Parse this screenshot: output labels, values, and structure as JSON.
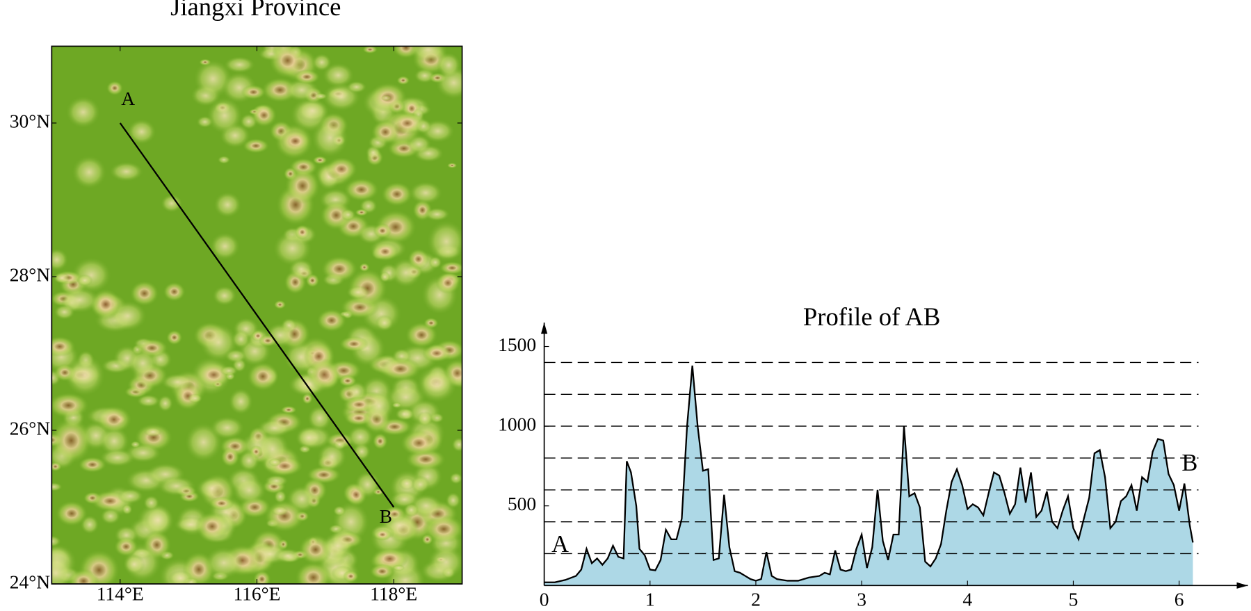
{
  "chart_data": [
    {
      "type": "map",
      "title": "Jiangxi Province",
      "xlim": [
        113,
        119
      ],
      "ylim": [
        24,
        31
      ],
      "xticks": [
        {
          "value": 114,
          "label": "114°E"
        },
        {
          "value": 116,
          "label": "116°E"
        },
        {
          "value": 118,
          "label": "118°E"
        }
      ],
      "yticks": [
        {
          "value": 24,
          "label": "24°N"
        },
        {
          "value": 26,
          "label": "26°N"
        },
        {
          "value": 28,
          "label": "28°N"
        },
        {
          "value": 30,
          "label": "30°N"
        }
      ],
      "points": [
        {
          "label": "A",
          "x": 114,
          "y": 30
        },
        {
          "label": "B",
          "x": 118,
          "y": 25
        }
      ]
    },
    {
      "type": "area",
      "title": "Profile of AB",
      "color": "#add8e6",
      "xlim": [
        0,
        6.65
      ],
      "ylim": [
        0,
        1650
      ],
      "xticks": [
        0,
        1,
        2,
        3,
        4,
        5,
        6
      ],
      "yticks": [
        500,
        1000,
        1500
      ],
      "dashed_levels": [
        200,
        400,
        600,
        800,
        1000,
        1200,
        1400
      ],
      "start_label": "A",
      "end_label": "B",
      "x": [
        0,
        0.1,
        0.2,
        0.3,
        0.35,
        0.4,
        0.45,
        0.5,
        0.55,
        0.6,
        0.65,
        0.7,
        0.75,
        0.78,
        0.82,
        0.87,
        0.9,
        0.95,
        1.0,
        1.05,
        1.1,
        1.15,
        1.2,
        1.25,
        1.3,
        1.35,
        1.4,
        1.45,
        1.5,
        1.55,
        1.6,
        1.65,
        1.7,
        1.75,
        1.8,
        1.85,
        1.9,
        1.95,
        2.0,
        2.05,
        2.1,
        2.15,
        2.2,
        2.3,
        2.4,
        2.5,
        2.6,
        2.65,
        2.7,
        2.75,
        2.8,
        2.85,
        2.9,
        2.95,
        3.0,
        3.05,
        3.1,
        3.15,
        3.2,
        3.25,
        3.3,
        3.35,
        3.4,
        3.45,
        3.5,
        3.55,
        3.6,
        3.65,
        3.7,
        3.75,
        3.8,
        3.85,
        3.9,
        3.95,
        4.0,
        4.05,
        4.1,
        4.15,
        4.2,
        4.25,
        4.3,
        4.35,
        4.4,
        4.45,
        4.5,
        4.55,
        4.6,
        4.65,
        4.7,
        4.75,
        4.8,
        4.85,
        4.9,
        4.95,
        5.0,
        5.05,
        5.1,
        5.15,
        5.2,
        5.25,
        5.3,
        5.35,
        5.4,
        5.45,
        5.5,
        5.55,
        5.6,
        5.65,
        5.7,
        5.75,
        5.8,
        5.85,
        5.9,
        5.95,
        6.0,
        6.05,
        6.1,
        6.13
      ],
      "values": [
        20,
        20,
        35,
        60,
        100,
        230,
        140,
        170,
        130,
        170,
        250,
        180,
        170,
        780,
        710,
        500,
        230,
        190,
        100,
        95,
        160,
        350,
        290,
        290,
        420,
        1000,
        1380,
        1000,
        720,
        730,
        160,
        170,
        570,
        240,
        90,
        80,
        60,
        40,
        30,
        40,
        210,
        60,
        40,
        30,
        30,
        50,
        60,
        80,
        70,
        220,
        100,
        90,
        100,
        230,
        320,
        110,
        240,
        600,
        280,
        160,
        320,
        320,
        1000,
        560,
        580,
        490,
        150,
        120,
        170,
        260,
        470,
        650,
        730,
        630,
        480,
        510,
        490,
        440,
        580,
        710,
        690,
        580,
        450,
        510,
        740,
        520,
        710,
        430,
        470,
        590,
        400,
        360,
        470,
        560,
        360,
        290,
        420,
        550,
        830,
        850,
        680,
        360,
        400,
        530,
        560,
        630,
        470,
        680,
        650,
        840,
        920,
        910,
        700,
        630,
        470,
        640,
        380,
        270
      ]
    }
  ]
}
